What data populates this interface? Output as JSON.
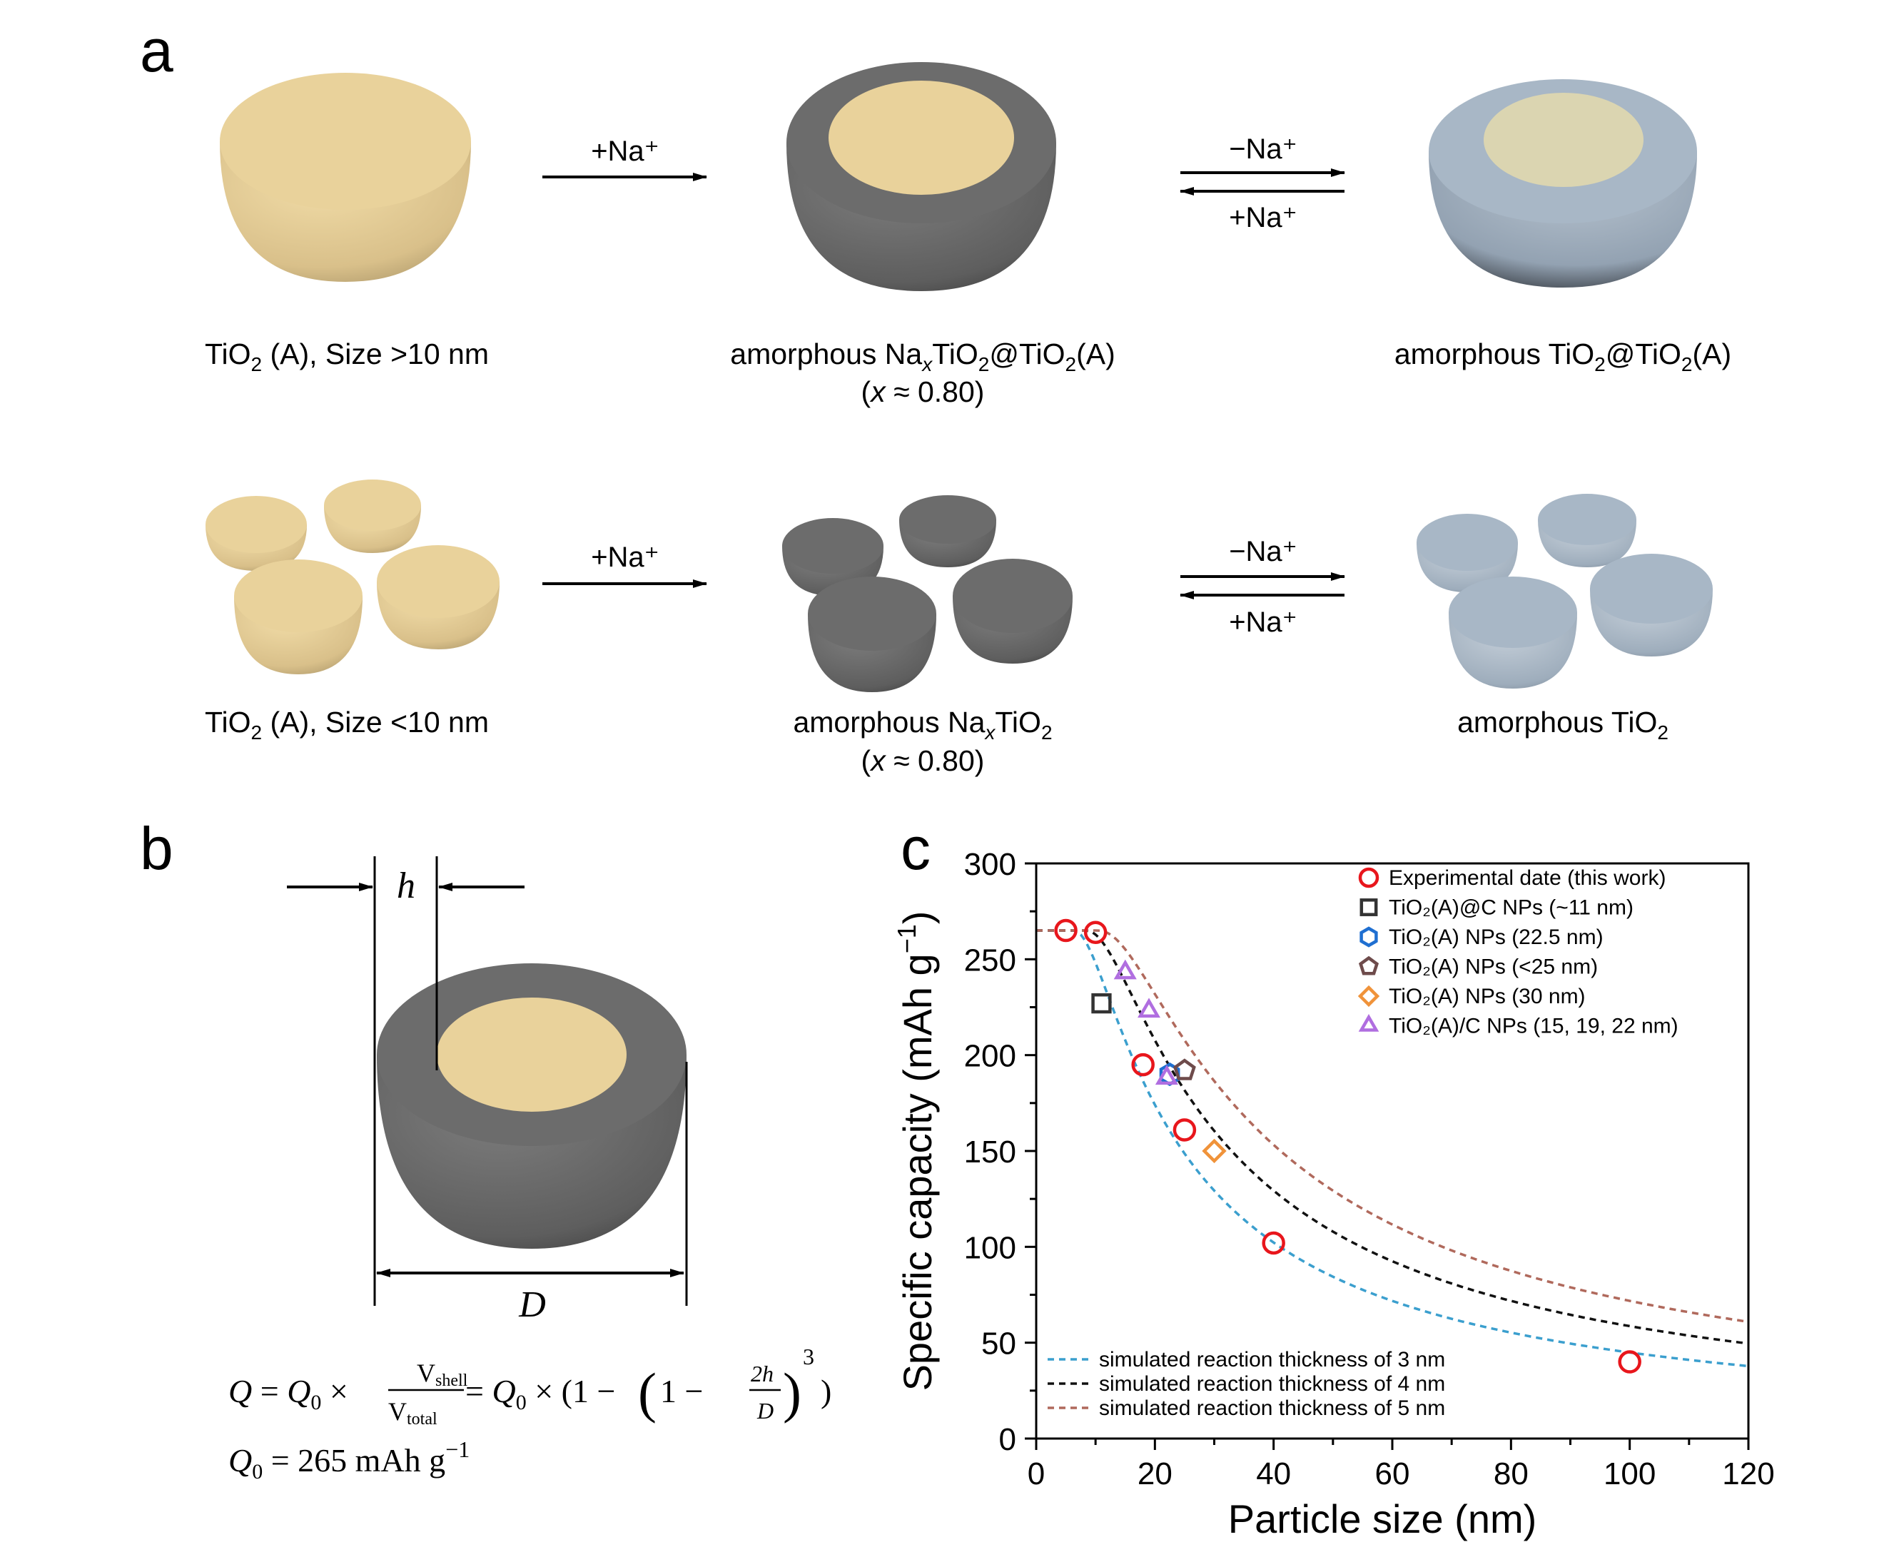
{
  "panel_labels": {
    "a": "a",
    "b": "b",
    "c": "c"
  },
  "panel_a": {
    "row1": {
      "state1": {
        "pre": "TiO",
        "sub": "2",
        "post": " (A), Size >10 nm"
      },
      "state2": {
        "line1_a": "amorphous Na",
        "x": "x",
        "line1_b": "TiO",
        "sub1": "2",
        "line1_c": "@TiO",
        "sub2": "2",
        "line1_d": "(A)",
        "line2_open": "(",
        "line2_x": "x",
        "line2_rest": " ≈ 0.80)"
      },
      "state3": {
        "pre": "amorphous TiO",
        "sub1": "2",
        "mid": "@TiO",
        "sub2": "2",
        "post": "(A)"
      },
      "arrow1": "+Na⁺",
      "arrow2_top": "−Na⁺",
      "arrow2_bottom": "+Na⁺"
    },
    "row2": {
      "state1": {
        "pre": "TiO",
        "sub": "2",
        "post": " (A), Size <10 nm"
      },
      "state2": {
        "pre": "amorphous Na",
        "x": "x",
        "mid": "TiO",
        "sub": "2",
        "line2_open": "(",
        "line2_x": "x",
        "line2_rest": " ≈ 0.80)"
      },
      "state3": {
        "pre": "amorphous TiO",
        "sub": "2"
      },
      "arrow1": "+Na⁺",
      "arrow2_top": "−Na⁺",
      "arrow2_bottom": "+Na⁺"
    }
  },
  "panel_b": {
    "h_label": "h",
    "D_label": "D",
    "equation1": {
      "Q": "Q",
      "eq": " = ",
      "Q0": "Q",
      "sub0": "0",
      "times": " × ",
      "vshell": "V",
      "vshell_sub": "shell",
      "vtotal": "V",
      "vtotal_sub": "total",
      "rest_a": " = ",
      "rest_Q": "Q",
      "rest_sub": "0",
      "rest_b": " × (1 − ",
      "inner_a": "1 − ",
      "frac_num": "2h",
      "frac_den": "D",
      "power": "3",
      "close": ")"
    },
    "equation2": {
      "Q": "Q",
      "sub": "0",
      "eq": " = 265 mAh g",
      "sup": "−1"
    }
  },
  "chart_data": {
    "type": "scatter",
    "xlabel": "Particle size (nm)",
    "ylabel": "Specific capacity (mAh g⁻¹)",
    "xlim": [
      0,
      120
    ],
    "ylim": [
      0,
      300
    ],
    "xticks": [
      0,
      20,
      40,
      60,
      80,
      100,
      120
    ],
    "yticks": [
      0,
      50,
      100,
      150,
      200,
      250,
      300
    ],
    "legend_position": "top-right",
    "series": [
      {
        "name": "Experimental date (this work)",
        "marker": "circle",
        "color": "#e8161c",
        "points": [
          [
            5,
            265
          ],
          [
            10,
            264
          ],
          [
            18,
            195
          ],
          [
            25,
            161
          ],
          [
            40,
            102
          ],
          [
            100,
            40
          ]
        ]
      },
      {
        "name": "TiO₂(A)@C NPs (~11 nm)",
        "marker": "square",
        "color": "#333333",
        "points": [
          [
            11,
            227
          ]
        ]
      },
      {
        "name": "TiO₂(A) NPs (22.5 nm)",
        "marker": "hexagon",
        "color": "#1f6fd1",
        "points": [
          [
            22.5,
            190
          ]
        ]
      },
      {
        "name": "TiO₂(A) NPs (<25 nm)",
        "marker": "pentagon",
        "color": "#6e4b4b",
        "points": [
          [
            25,
            192
          ]
        ]
      },
      {
        "name": "TiO₂(A) NPs (30 nm)",
        "marker": "diamond",
        "color": "#f0933a",
        "points": [
          [
            30,
            150
          ]
        ]
      },
      {
        "name": "TiO₂(A)/C NPs (15, 19, 22 nm)",
        "marker": "triangle",
        "color": "#b06ee0",
        "points": [
          [
            15,
            243
          ],
          [
            19,
            223
          ],
          [
            22,
            188
          ]
        ]
      }
    ],
    "simulated_curves": [
      {
        "name": "simulated reaction thickness of 3 nm",
        "h": 3,
        "q0": 265,
        "color": "#3b9fce"
      },
      {
        "name": "simulated reaction thickness of 4 nm",
        "h": 4,
        "q0": 265,
        "color": "#111111"
      },
      {
        "name": "simulated reaction thickness of 5 nm",
        "h": 5,
        "q0": 265,
        "color": "#b0695c"
      }
    ]
  },
  "colors": {
    "tan": "#e9d29b",
    "dark_grey": "#6f6f6f",
    "blue_grey": "#a8b7c6"
  }
}
